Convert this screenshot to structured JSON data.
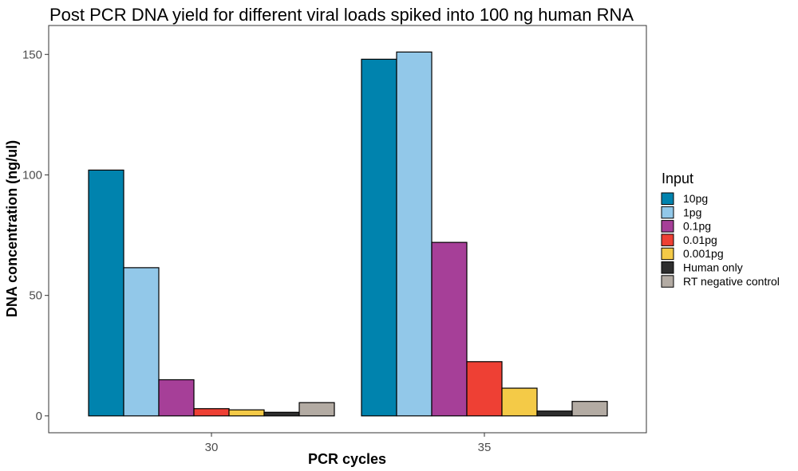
{
  "chart_data": {
    "type": "bar",
    "title": "Post PCR DNA yield for different viral loads spiked into 100 ng human RNA",
    "xlabel": "PCR cycles",
    "ylabel": "DNA concentration (ng/ul)",
    "categories": [
      "30",
      "35"
    ],
    "ylim": [
      -7,
      162
    ],
    "yticks": [
      0,
      50,
      100,
      150
    ],
    "grid": false,
    "legend": {
      "title": "Input",
      "position": "right"
    },
    "series": [
      {
        "name": "10pg",
        "color": "#0083AE",
        "values": [
          102,
          148
        ]
      },
      {
        "name": "1pg",
        "color": "#92C8E9",
        "values": [
          61.5,
          151
        ]
      },
      {
        "name": "0.1pg",
        "color": "#A63F98",
        "values": [
          15,
          72
        ]
      },
      {
        "name": "0.01pg",
        "color": "#EE4034",
        "values": [
          3,
          22.5
        ]
      },
      {
        "name": "0.001pg",
        "color": "#F4CA47",
        "values": [
          2.5,
          11.5
        ]
      },
      {
        "name": "Human only",
        "color": "#2E2E2E",
        "values": [
          1.5,
          2
        ]
      },
      {
        "name": "RT negative control",
        "color": "#B3ABA3",
        "values": [
          5.5,
          6
        ]
      }
    ]
  }
}
